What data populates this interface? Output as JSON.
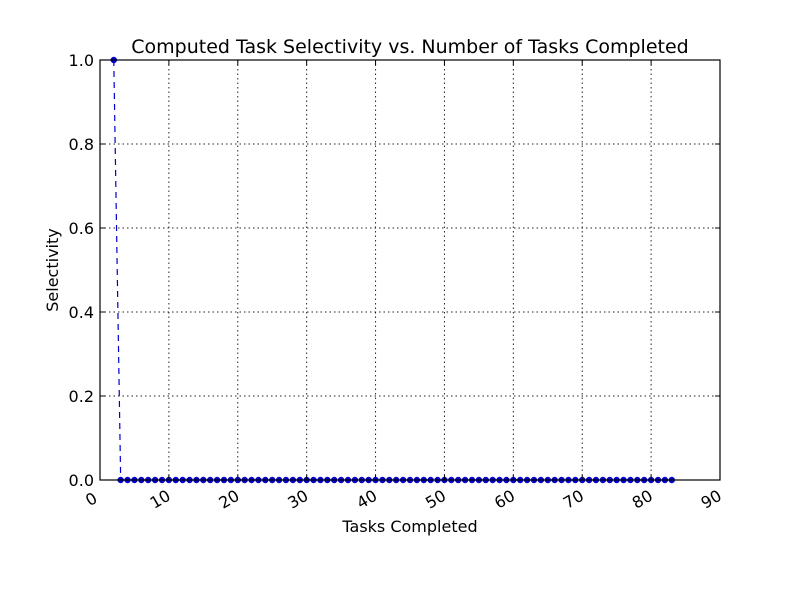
{
  "chart_data": {
    "type": "line",
    "title": "Computed Task Selectivity vs. Number of Tasks Completed",
    "xlabel": "Tasks Completed",
    "ylabel": "Selectivity",
    "xlim": [
      0,
      90
    ],
    "ylim": [
      0.0,
      1.0
    ],
    "xticks": [
      0,
      10,
      20,
      30,
      40,
      50,
      60,
      70,
      80,
      90
    ],
    "xtick_labels": [
      "0",
      "10",
      "20",
      "30",
      "40",
      "50",
      "60",
      "70",
      "80",
      "90"
    ],
    "yticks": [
      0.0,
      0.2,
      0.4,
      0.6,
      0.8,
      1.0
    ],
    "ytick_labels": [
      "0.0",
      "0.2",
      "0.4",
      "0.6",
      "0.8",
      "1.0"
    ],
    "grid": true,
    "series": [
      {
        "color": "#0000cc",
        "linestyle": "dashed",
        "marker": "circle",
        "x": [
          2,
          3,
          4,
          5,
          6,
          7,
          8,
          9,
          10,
          11,
          12,
          13,
          14,
          15,
          16,
          17,
          18,
          19,
          20,
          21,
          22,
          23,
          24,
          25,
          26,
          27,
          28,
          29,
          30,
          31,
          32,
          33,
          34,
          35,
          36,
          37,
          38,
          39,
          40,
          41,
          42,
          43,
          44,
          45,
          46,
          47,
          48,
          49,
          50,
          51,
          52,
          53,
          54,
          55,
          56,
          57,
          58,
          59,
          60,
          61,
          62,
          63,
          64,
          65,
          66,
          67,
          68,
          69,
          70,
          71,
          72,
          73,
          74,
          75,
          76,
          77,
          78,
          79,
          80,
          81,
          82,
          83
        ],
        "y": [
          1.0,
          0,
          0,
          0,
          0,
          0,
          0,
          0,
          0,
          0,
          0,
          0,
          0,
          0,
          0,
          0,
          0,
          0,
          0,
          0,
          0,
          0,
          0,
          0,
          0,
          0,
          0,
          0,
          0,
          0,
          0,
          0,
          0,
          0,
          0,
          0,
          0,
          0,
          0,
          0,
          0,
          0,
          0,
          0,
          0,
          0,
          0,
          0,
          0,
          0,
          0,
          0,
          0,
          0,
          0,
          0,
          0,
          0,
          0,
          0,
          0,
          0,
          0,
          0,
          0,
          0,
          0,
          0,
          0,
          0,
          0,
          0,
          0,
          0,
          0,
          0,
          0,
          0,
          0,
          0,
          0,
          0
        ]
      }
    ]
  }
}
